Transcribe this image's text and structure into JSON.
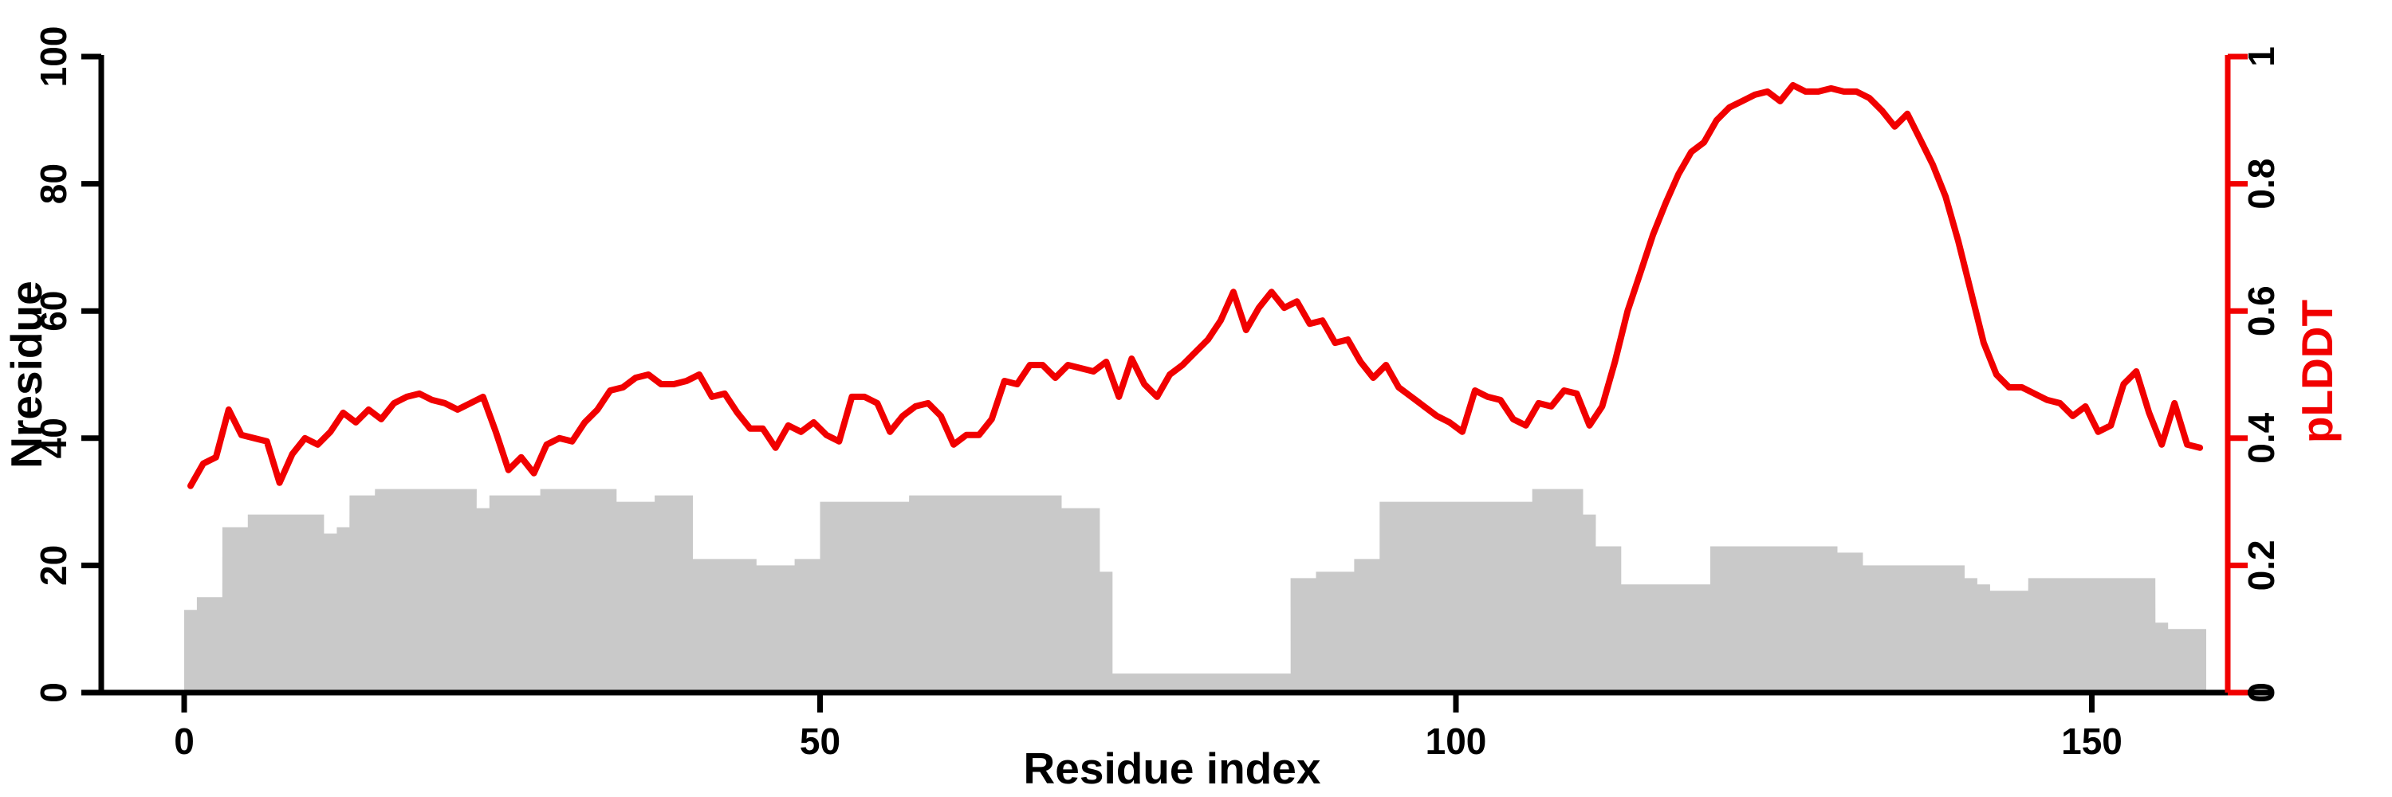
{
  "figure": {
    "xlabel": "Residue index",
    "ylabel_left": "Nresidue",
    "ylabel_right": "pLDDT"
  },
  "chart_data": {
    "type": "bar",
    "combo": "gray unit-width bars (left axis) + red line (right axis)",
    "x_start_residue": 0,
    "n_points": 159,
    "xlabel": "Residue index",
    "ylabel_left": "Nresidue",
    "ylabel_right": "pLDDT",
    "xlim": [
      -6.5,
      160.7
    ],
    "ylim_left": [
      0,
      100
    ],
    "ylim_right": [
      0,
      1
    ],
    "grid": false,
    "legend_position": "none",
    "xticks": {
      "values": [
        0,
        50,
        100,
        150
      ],
      "labels": [
        "0",
        "50",
        "100",
        "150"
      ]
    },
    "yticks_left": {
      "values": [
        0,
        20,
        40,
        60,
        80,
        100
      ],
      "labels": [
        "0",
        "20",
        "40",
        "60",
        "80",
        "100"
      ]
    },
    "yticks_right": {
      "values": [
        0,
        0.2,
        0.4,
        0.6,
        0.8,
        1
      ],
      "labels": [
        "0",
        "0.2",
        "0.4",
        "0.6",
        "0.8",
        "1"
      ]
    },
    "colors": {
      "bars": "#c9c9c9",
      "line": "#f10000",
      "left_axis": "#000000",
      "right_axis": "#f10000",
      "background": "#ffffff"
    },
    "series": [
      {
        "name": "Nresidue",
        "type": "bar",
        "axis": "left",
        "values": [
          13,
          15,
          15,
          26,
          26,
          28,
          28,
          28,
          28,
          28,
          28,
          25,
          26,
          31,
          31,
          32,
          32,
          32,
          32,
          32,
          32,
          32,
          32,
          29,
          31,
          31,
          31,
          31,
          32,
          32,
          32,
          32,
          32,
          32,
          30,
          30,
          30,
          31,
          31,
          31,
          21,
          21,
          21,
          21,
          21,
          20,
          20,
          20,
          21,
          21,
          30,
          30,
          30,
          30,
          30,
          30,
          30,
          31,
          31,
          31,
          31,
          31,
          31,
          31,
          31,
          31,
          31,
          31,
          31,
          29,
          29,
          29,
          19,
          3,
          3,
          3,
          3,
          3,
          3,
          3,
          3,
          3,
          3,
          3,
          3,
          3,
          3,
          18,
          18,
          19,
          19,
          19,
          21,
          21,
          30,
          30,
          30,
          30,
          30,
          30,
          30,
          30,
          30,
          30,
          30,
          30,
          32,
          32,
          32,
          32,
          28,
          23,
          23,
          17,
          17,
          17,
          17,
          17,
          17,
          17,
          23,
          23,
          23,
          23,
          23,
          23,
          23,
          23,
          23,
          23,
          22,
          22,
          20,
          20,
          20,
          20,
          20,
          20,
          20,
          20,
          18,
          17,
          16,
          16,
          16,
          18,
          18,
          18,
          18,
          18,
          18,
          18,
          18,
          18,
          18,
          11,
          10,
          10,
          10
        ]
      },
      {
        "name": "pLDDT",
        "type": "line",
        "axis": "right",
        "values": [
          0.325,
          0.36,
          0.37,
          0.445,
          0.405,
          0.4,
          0.395,
          0.33,
          0.375,
          0.4,
          0.39,
          0.41,
          0.44,
          0.425,
          0.445,
          0.43,
          0.455,
          0.465,
          0.47,
          0.46,
          0.455,
          0.445,
          0.455,
          0.465,
          0.41,
          0.35,
          0.37,
          0.345,
          0.39,
          0.4,
          0.395,
          0.425,
          0.445,
          0.475,
          0.48,
          0.495,
          0.5,
          0.485,
          0.485,
          0.49,
          0.5,
          0.465,
          0.47,
          0.44,
          0.415,
          0.415,
          0.385,
          0.42,
          0.41,
          0.425,
          0.405,
          0.395,
          0.465,
          0.465,
          0.455,
          0.41,
          0.435,
          0.45,
          0.455,
          0.435,
          0.39,
          0.405,
          0.405,
          0.43,
          0.49,
          0.485,
          0.515,
          0.515,
          0.495,
          0.515,
          0.51,
          0.505,
          0.52,
          0.465,
          0.525,
          0.485,
          0.465,
          0.5,
          0.515,
          0.535,
          0.555,
          0.585,
          0.63,
          0.57,
          0.605,
          0.63,
          0.605,
          0.615,
          0.58,
          0.585,
          0.55,
          0.555,
          0.52,
          0.495,
          0.515,
          0.48,
          0.465,
          0.45,
          0.435,
          0.425,
          0.41,
          0.475,
          0.465,
          0.46,
          0.43,
          0.42,
          0.455,
          0.45,
          0.475,
          0.47,
          0.42,
          0.45,
          0.52,
          0.6,
          0.66,
          0.72,
          0.77,
          0.815,
          0.85,
          0.865,
          0.9,
          0.92,
          0.93,
          0.94,
          0.945,
          0.93,
          0.955,
          0.945,
          0.945,
          0.95,
          0.945,
          0.945,
          0.935,
          0.915,
          0.89,
          0.91,
          0.87,
          0.83,
          0.78,
          0.71,
          0.63,
          0.55,
          0.5,
          0.48,
          0.48,
          0.47,
          0.46,
          0.455,
          0.435,
          0.45,
          0.41,
          0.42,
          0.485,
          0.505,
          0.44,
          0.39,
          0.455,
          0.39,
          0.385
        ]
      }
    ]
  }
}
